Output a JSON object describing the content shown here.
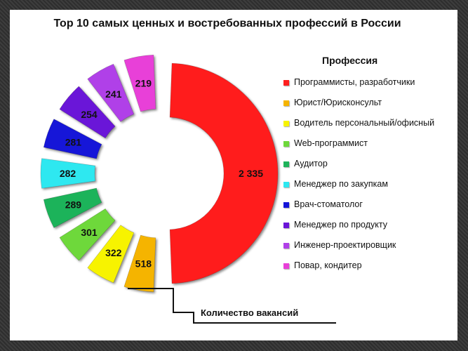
{
  "chart_data": {
    "type": "pie",
    "variant": "exploded-semi-donut",
    "title": "Top 10 самых ценных и востребованных профессий в России",
    "legend_title": "Профессия",
    "value_caption": "Количество вакансий",
    "legend_position": "right",
    "categories": [
      "Программисты, разработчики",
      "Юрист/Юрисконсульт",
      "Водитель персональный/офисный",
      "Web-программист",
      "Аудитор",
      "Менеджер по закупкам",
      "Врач-стоматолог",
      "Менеджер по продукту",
      "Инженер-проектировщик",
      "Повар, кондитер"
    ],
    "values": [
      2335,
      518,
      322,
      301,
      289,
      282,
      281,
      254,
      241,
      219
    ],
    "value_labels": [
      "2 335",
      "518",
      "322",
      "301",
      "289",
      "282",
      "281",
      "254",
      "241",
      "219"
    ],
    "colors": [
      "#ff1f1f",
      "#f5b400",
      "#f7f300",
      "#6ed83a",
      "#1eb35a",
      "#2ee8f0",
      "#1414d8",
      "#6a14d8",
      "#b040e8",
      "#e840d8"
    ]
  }
}
